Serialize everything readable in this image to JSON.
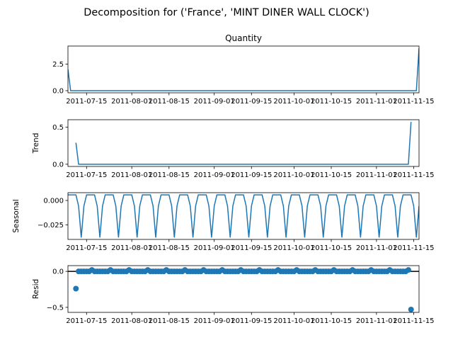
{
  "figure": {
    "suptitle": "Decomposition for ('France', 'MINT DINER WALL CLOCK')",
    "colors": {
      "line": "#1f77b4",
      "axis": "#000000",
      "zero_line": "#000000"
    }
  },
  "chart_data": [
    {
      "type": "line",
      "title": "Quantity",
      "xlabel": "",
      "ylabel": "",
      "xlim": [
        "2011-07-08",
        "2011-11-17"
      ],
      "ylim": [
        -0.2,
        4.2
      ],
      "yticks": [
        0.0,
        2.5
      ],
      "ytick_labels": [
        "0.0",
        "2.5"
      ],
      "xticks": [
        "2011-07-15",
        "2011-08-01",
        "2011-08-15",
        "2011-09-01",
        "2011-09-15",
        "2011-10-01",
        "2011-10-15",
        "2011-11-01",
        "2011-11-15"
      ],
      "series": [
        {
          "x": [
            "2011-07-08",
            "2011-07-09",
            "2011-11-16",
            "2011-11-17"
          ],
          "values": [
            2.0,
            0.0,
            0.0,
            4.0
          ]
        }
      ]
    },
    {
      "type": "line",
      "title": "",
      "xlabel": "",
      "ylabel": "Trend",
      "xlim": [
        "2011-07-08",
        "2011-11-17"
      ],
      "ylim": [
        -0.03,
        0.6
      ],
      "yticks": [
        0.0,
        0.5
      ],
      "ytick_labels": [
        "0.0",
        "0.5"
      ],
      "xticks": [
        "2011-07-15",
        "2011-08-01",
        "2011-08-15",
        "2011-09-01",
        "2011-09-15",
        "2011-10-01",
        "2011-10-15",
        "2011-11-01",
        "2011-11-15"
      ],
      "series": [
        {
          "x": [
            "2011-07-11",
            "2011-07-12",
            "2011-11-13",
            "2011-11-14"
          ],
          "values": [
            0.29,
            0.0,
            0.0,
            0.57
          ]
        }
      ]
    },
    {
      "type": "line",
      "title": "",
      "xlabel": "",
      "ylabel": "Seasonal",
      "xlim": [
        "2011-07-08",
        "2011-11-17"
      ],
      "ylim": [
        -0.04,
        0.008
      ],
      "yticks": [
        0.0,
        -0.025
      ],
      "ytick_labels": [
        "0.000",
        "−0.025"
      ],
      "xticks": [
        "2011-07-15",
        "2011-08-01",
        "2011-08-15",
        "2011-09-01",
        "2011-09-15",
        "2011-10-01",
        "2011-10-15",
        "2011-11-01",
        "2011-11-15"
      ],
      "period": 7,
      "pattern": [
        0.0057,
        0.0057,
        0.0057,
        0.0057,
        -0.0057,
        -0.038,
        -0.0057
      ],
      "start": "2011-07-08",
      "end": "2011-11-17"
    },
    {
      "type": "scatter",
      "title": "",
      "xlabel": "",
      "ylabel": "Resid",
      "xlim": [
        "2011-07-08",
        "2011-11-17"
      ],
      "ylim": [
        -0.57,
        0.08
      ],
      "yticks": [
        0.0,
        -0.5
      ],
      "ytick_labels": [
        "0.0",
        "−0.5"
      ],
      "xticks": [
        "2011-07-15",
        "2011-08-01",
        "2011-08-15",
        "2011-09-01",
        "2011-09-15",
        "2011-10-01",
        "2011-10-15",
        "2011-11-01",
        "2011-11-15"
      ],
      "zero_line": true,
      "start": "2011-07-12",
      "end": "2011-11-13",
      "base_value": 0.0,
      "period_high": 7,
      "high_offset": 5,
      "high_value": 0.02,
      "extra_points": [
        {
          "x": "2011-07-11",
          "y": -0.24
        },
        {
          "x": "2011-11-14",
          "y": -0.53
        }
      ]
    }
  ]
}
